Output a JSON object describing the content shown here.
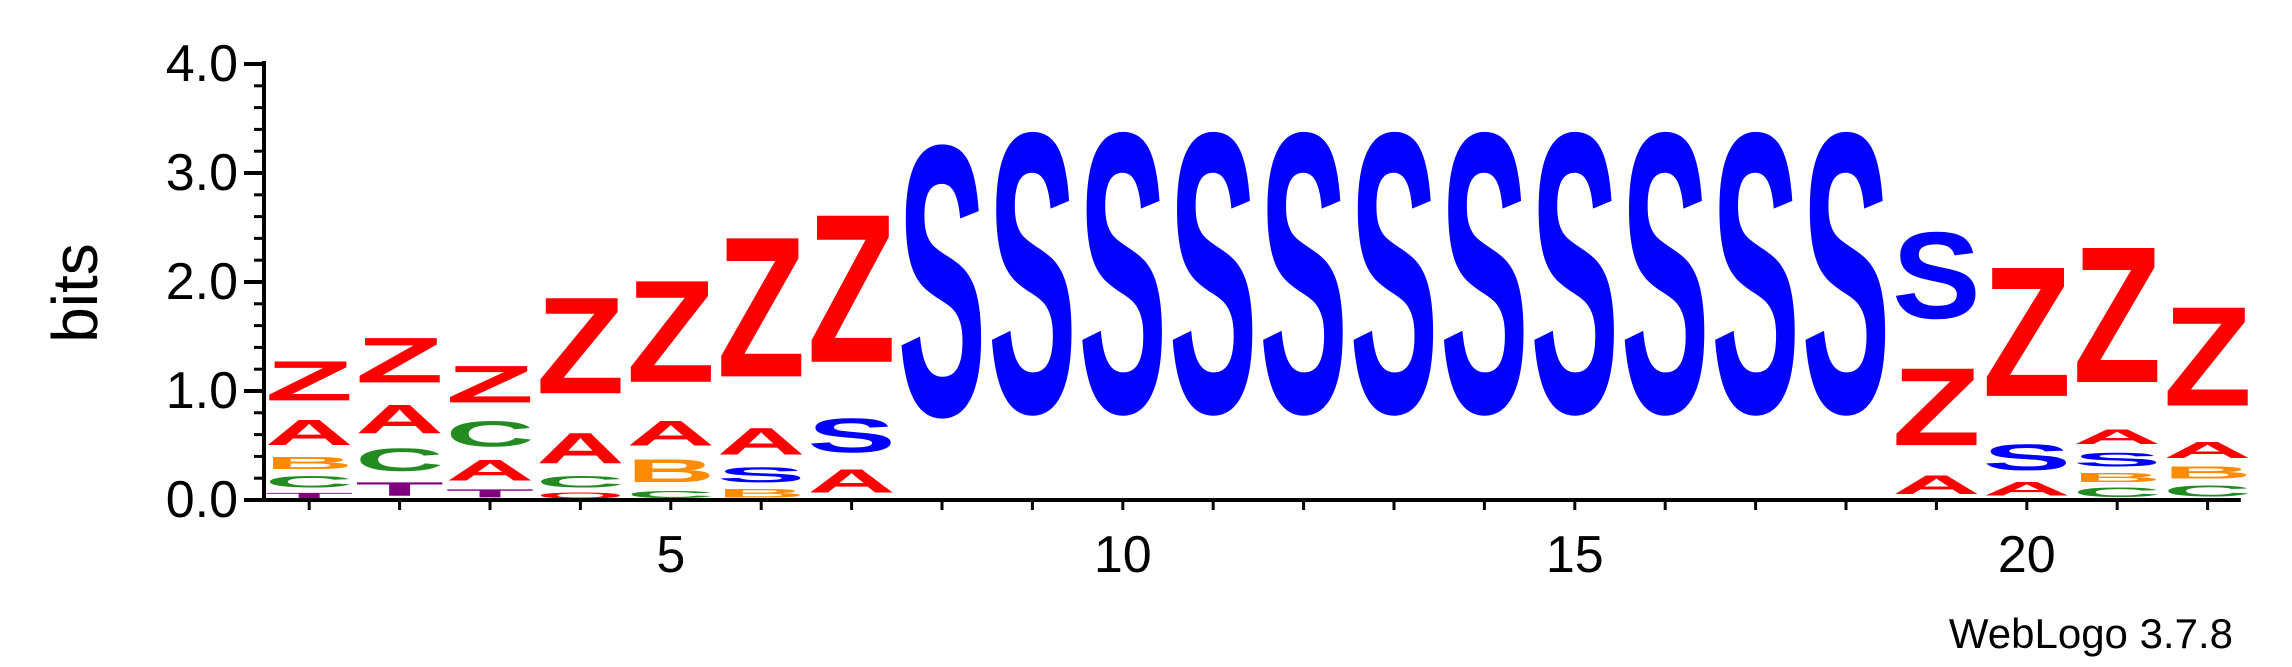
{
  "chart_data": {
    "type": "sequence-logo",
    "ylabel": "bits",
    "xlabel": "",
    "ylim": [
      0,
      4.0
    ],
    "yticks": [
      "0.0",
      "1.0",
      "2.0",
      "3.0",
      "4.0"
    ],
    "xticks": [
      5,
      10,
      15,
      20
    ],
    "credit": "WebLogo 3.7.8",
    "colors": {
      "Z": "#ff0000",
      "S": "#0000ff",
      "A": "#ff0000",
      "C": "#228b22",
      "B": "#ff8c00",
      "T": "#800080",
      "O": "#ff0000"
    },
    "positions": [
      {
        "pos": 1,
        "letters": [
          {
            "c": "T",
            "h": 0.08
          },
          {
            "c": "C",
            "h": 0.17
          },
          {
            "c": "B",
            "h": 0.18
          },
          {
            "c": "A",
            "h": 0.37
          },
          {
            "c": "Z",
            "h": 0.58
          }
        ]
      },
      {
        "pos": 2,
        "letters": [
          {
            "c": "T",
            "h": 0.2
          },
          {
            "c": "C",
            "h": 0.33
          },
          {
            "c": "A",
            "h": 0.42
          },
          {
            "c": "Z",
            "h": 0.66
          }
        ]
      },
      {
        "pos": 3,
        "letters": [
          {
            "c": "T",
            "h": 0.12
          },
          {
            "c": "A",
            "h": 0.3
          },
          {
            "c": "C",
            "h": 0.37
          },
          {
            "c": "Z",
            "h": 0.54
          }
        ]
      },
      {
        "pos": 4,
        "letters": [
          {
            "c": "O",
            "h": 0.08
          },
          {
            "c": "C",
            "h": 0.17
          },
          {
            "c": "A",
            "h": 0.45
          },
          {
            "c": "Z",
            "h": 1.42
          }
        ]
      },
      {
        "pos": 5,
        "letters": [
          {
            "c": "C",
            "h": 0.1
          },
          {
            "c": "B",
            "h": 0.33
          },
          {
            "c": "A",
            "h": 0.36
          },
          {
            "c": "Z",
            "h": 1.5
          }
        ]
      },
      {
        "pos": 6,
        "letters": [
          {
            "c": "B",
            "h": 0.12
          },
          {
            "c": "S",
            "h": 0.22
          },
          {
            "c": "A",
            "h": 0.39
          },
          {
            "c": "Z",
            "h": 2.06
          }
        ]
      },
      {
        "pos": 7,
        "letters": [
          {
            "c": "A",
            "h": 0.34
          },
          {
            "c": "S",
            "h": 0.5
          },
          {
            "c": "Z",
            "h": 2.18
          }
        ]
      },
      {
        "pos": 8,
        "letters": [
          {
            "c": "S",
            "h": 3.98
          }
        ]
      },
      {
        "pos": 9,
        "letters": [
          {
            "c": "S",
            "h": 4.12
          }
        ]
      },
      {
        "pos": 10,
        "letters": [
          {
            "c": "S",
            "h": 4.12
          }
        ]
      },
      {
        "pos": 11,
        "letters": [
          {
            "c": "S",
            "h": 4.12
          }
        ]
      },
      {
        "pos": 12,
        "letters": [
          {
            "c": "S",
            "h": 4.12
          }
        ]
      },
      {
        "pos": 13,
        "letters": [
          {
            "c": "S",
            "h": 4.12
          }
        ]
      },
      {
        "pos": 14,
        "letters": [
          {
            "c": "S",
            "h": 4.12
          }
        ]
      },
      {
        "pos": 15,
        "letters": [
          {
            "c": "S",
            "h": 4.12
          }
        ]
      },
      {
        "pos": 16,
        "letters": [
          {
            "c": "S",
            "h": 4.12
          }
        ]
      },
      {
        "pos": 17,
        "letters": [
          {
            "c": "S",
            "h": 4.12
          }
        ]
      },
      {
        "pos": 18,
        "letters": [
          {
            "c": "S",
            "h": 4.12
          }
        ]
      },
      {
        "pos": 19,
        "letters": [
          {
            "c": "A",
            "h": 0.28
          },
          {
            "c": "Z",
            "h": 1.14
          },
          {
            "c": "S",
            "h": 1.27
          }
        ]
      },
      {
        "pos": 20,
        "letters": [
          {
            "c": "A",
            "h": 0.2
          },
          {
            "c": "S",
            "h": 0.38
          },
          {
            "c": "Z",
            "h": 1.91
          }
        ]
      },
      {
        "pos": 21,
        "letters": [
          {
            "c": "C",
            "h": 0.14
          },
          {
            "c": "B",
            "h": 0.13
          },
          {
            "c": "S",
            "h": 0.2
          },
          {
            "c": "A",
            "h": 0.22
          },
          {
            "c": "Z",
            "h": 2.0
          }
        ]
      },
      {
        "pos": 22,
        "letters": [
          {
            "c": "C",
            "h": 0.16
          },
          {
            "c": "B",
            "h": 0.18
          },
          {
            "c": "A",
            "h": 0.24
          },
          {
            "c": "Z",
            "h": 1.46
          }
        ]
      }
    ]
  }
}
